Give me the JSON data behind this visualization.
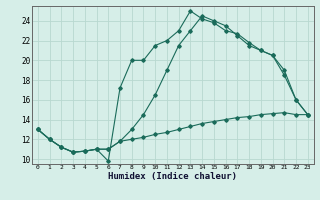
{
  "xlabel": "Humidex (Indice chaleur)",
  "background_color": "#d6eee8",
  "grid_color": "#b8d8d0",
  "line_color": "#1a6b5a",
  "xlim": [
    -0.5,
    23.5
  ],
  "ylim": [
    9.5,
    25.5
  ],
  "xticks": [
    0,
    1,
    2,
    3,
    4,
    5,
    6,
    7,
    8,
    9,
    10,
    11,
    12,
    13,
    14,
    15,
    16,
    17,
    18,
    19,
    20,
    21,
    22,
    23
  ],
  "yticks": [
    10,
    12,
    14,
    16,
    18,
    20,
    22,
    24
  ],
  "line1_x": [
    0,
    1,
    2,
    3,
    4,
    5,
    6,
    7,
    8,
    9,
    10,
    11,
    12,
    13,
    14,
    15,
    16,
    17,
    18,
    19,
    20,
    21,
    22,
    23
  ],
  "line1_y": [
    13.0,
    12.0,
    11.2,
    10.7,
    10.8,
    11.0,
    11.0,
    11.8,
    12.0,
    12.2,
    12.5,
    12.7,
    13.0,
    13.3,
    13.6,
    13.8,
    14.0,
    14.2,
    14.3,
    14.5,
    14.6,
    14.7,
    14.5,
    14.5
  ],
  "line2_x": [
    0,
    1,
    2,
    3,
    4,
    5,
    6,
    7,
    8,
    9,
    10,
    11,
    12,
    13,
    14,
    15,
    16,
    17,
    18,
    19,
    20,
    21,
    22,
    23
  ],
  "line2_y": [
    13.0,
    12.0,
    11.2,
    10.7,
    10.8,
    11.0,
    11.0,
    11.8,
    13.0,
    14.5,
    16.5,
    19.0,
    21.5,
    23.0,
    24.5,
    24.0,
    23.5,
    22.5,
    21.5,
    21.0,
    20.5,
    19.0,
    16.0,
    14.5
  ],
  "line3_x": [
    0,
    1,
    2,
    3,
    4,
    5,
    6,
    7,
    8,
    9,
    10,
    11,
    12,
    13,
    14,
    15,
    16,
    17,
    18,
    19,
    20,
    21,
    22,
    23
  ],
  "line3_y": [
    13.0,
    12.0,
    11.2,
    10.7,
    10.8,
    11.0,
    9.8,
    17.2,
    20.0,
    20.0,
    21.5,
    22.0,
    23.0,
    25.0,
    24.2,
    23.8,
    23.0,
    22.7,
    21.8,
    21.0,
    20.5,
    18.5,
    16.0,
    14.5
  ]
}
